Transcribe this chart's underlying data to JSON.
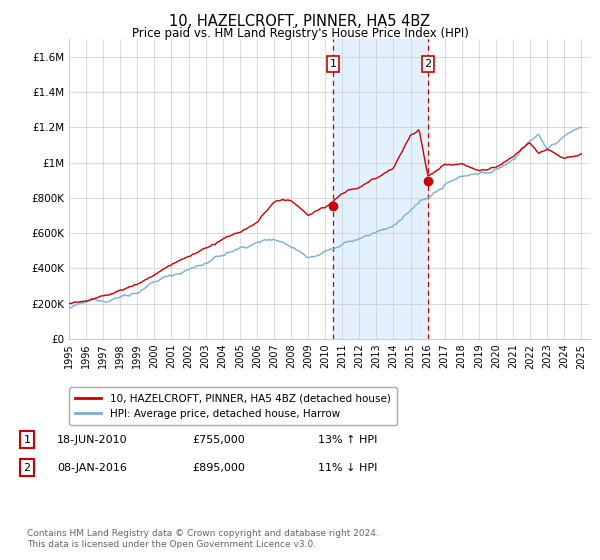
{
  "title": "10, HAZELCROFT, PINNER, HA5 4BZ",
  "subtitle": "Price paid vs. HM Land Registry's House Price Index (HPI)",
  "ylabel_ticks": [
    "£0",
    "£200K",
    "£400K",
    "£600K",
    "£800K",
    "£1M",
    "£1.2M",
    "£1.4M",
    "£1.6M"
  ],
  "ytick_values": [
    0,
    200000,
    400000,
    600000,
    800000,
    1000000,
    1200000,
    1400000,
    1600000
  ],
  "ylim": [
    0,
    1700000
  ],
  "xlim_start": 1995.0,
  "xlim_end": 2025.5,
  "sale1": {
    "date_x": 2010.46,
    "price": 755000,
    "label": "1"
  },
  "sale2": {
    "date_x": 2016.02,
    "price": 895000,
    "label": "2"
  },
  "legend_line1": "10, HAZELCROFT, PINNER, HA5 4BZ (detached house)",
  "legend_line2": "HPI: Average price, detached house, Harrow",
  "footer": "Contains HM Land Registry data © Crown copyright and database right 2024.\nThis data is licensed under the Open Government Licence v3.0.",
  "color_red": "#cc0000",
  "color_blue": "#7ab0d4",
  "color_shading": "#ddeeff",
  "background_color": "#ffffff",
  "row1_date": "18-JUN-2010",
  "row1_price": "£755,000",
  "row1_hpi": "13% ↑ HPI",
  "row2_date": "08-JAN-2016",
  "row2_price": "£895,000",
  "row2_hpi": "11% ↓ HPI"
}
